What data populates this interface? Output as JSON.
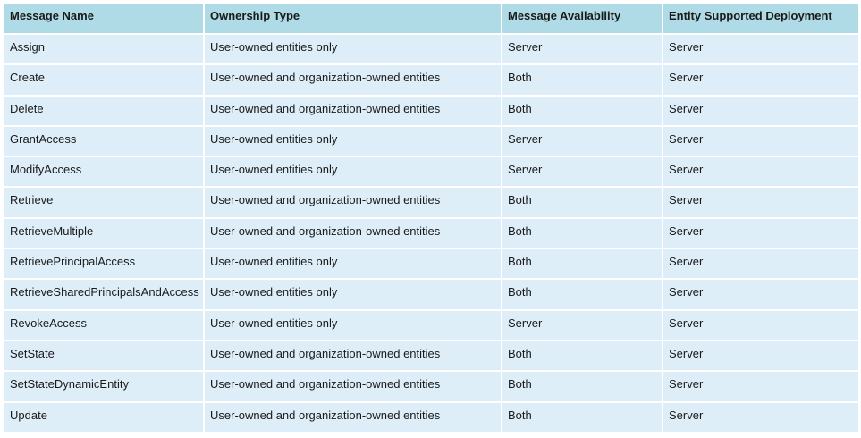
{
  "table": {
    "headers": [
      "Message Name",
      "Ownership Type",
      "Message Availability",
      "Entity Supported Deployment"
    ],
    "rows": [
      [
        "Assign",
        "User-owned entities only",
        "Server",
        "Server"
      ],
      [
        "Create",
        "User-owned and organization-owned entities",
        "Both",
        "Server"
      ],
      [
        "Delete",
        "User-owned and organization-owned entities",
        "Both",
        "Server"
      ],
      [
        "GrantAccess",
        "User-owned entities only",
        "Server",
        "Server"
      ],
      [
        "ModifyAccess",
        "User-owned entities only",
        "Server",
        "Server"
      ],
      [
        "Retrieve",
        "User-owned and organization-owned entities",
        "Both",
        "Server"
      ],
      [
        "RetrieveMultiple",
        "User-owned and organization-owned entities",
        "Both",
        "Server"
      ],
      [
        "RetrievePrincipalAccess",
        "User-owned entities only",
        "Both",
        "Server"
      ],
      [
        "RetrieveSharedPrincipalsAndAccess",
        "User-owned entities only",
        "Both",
        "Server"
      ],
      [
        "RevokeAccess",
        "User-owned entities only",
        "Server",
        "Server"
      ],
      [
        "SetState",
        "User-owned and organization-owned entities",
        "Both",
        "Server"
      ],
      [
        "SetStateDynamicEntity",
        "User-owned and organization-owned entities",
        "Both",
        "Server"
      ],
      [
        "Update",
        "User-owned and organization-owned entities",
        "Both",
        "Server"
      ]
    ]
  }
}
